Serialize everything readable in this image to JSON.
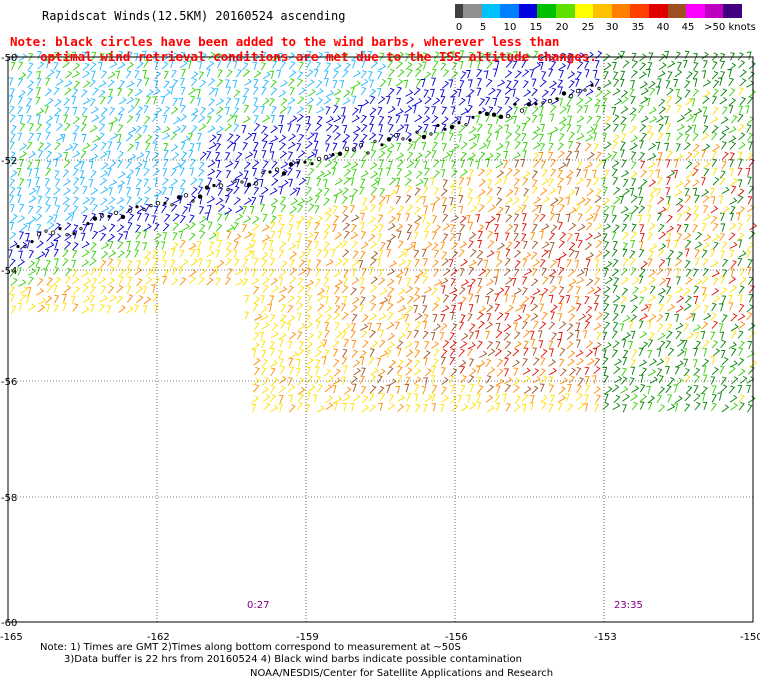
{
  "header": {
    "title": "Rapidscat Winds(12.5KM) 20160524 ascending",
    "note_line1": "Note: black circles have been added to the wind barbs, wherever less than",
    "note_line2": "optimal wind retrieval conditions are met due to the ISS altitude changes."
  },
  "legend": {
    "colors": [
      "#404040",
      "#909090",
      "#00c0ff",
      "#0080ff",
      "#0000e0",
      "#00c000",
      "#60e000",
      "#ffff00",
      "#ffc000",
      "#ff8000",
      "#ff4000",
      "#e00000",
      "#a05020",
      "#ff00ff",
      "#c000c0",
      "#400080"
    ],
    "labels": [
      "0",
      "5",
      "10",
      "15",
      "20",
      "25",
      "30",
      "35",
      "40",
      "45",
      ">50 knots"
    ]
  },
  "map": {
    "lat_labels": [
      "-50",
      "-52",
      "-54",
      "-56",
      "-58",
      "-60"
    ],
    "lon_labels": [
      "-165",
      "-162",
      "-159",
      "-156",
      "-153",
      "-150"
    ],
    "time_labels": [
      "0:27",
      "23:35"
    ]
  },
  "footer": {
    "note_line1": "Note: 1) Times are GMT 2)Times along bottom correspond to measurement at ~50S",
    "note_line2": "3)Data buffer is 22 hrs from 20160524 4) Black wind barbs indicate possible contamination",
    "credit": "NOAA/NESDIS/Center for Satellite Applications and Research"
  }
}
